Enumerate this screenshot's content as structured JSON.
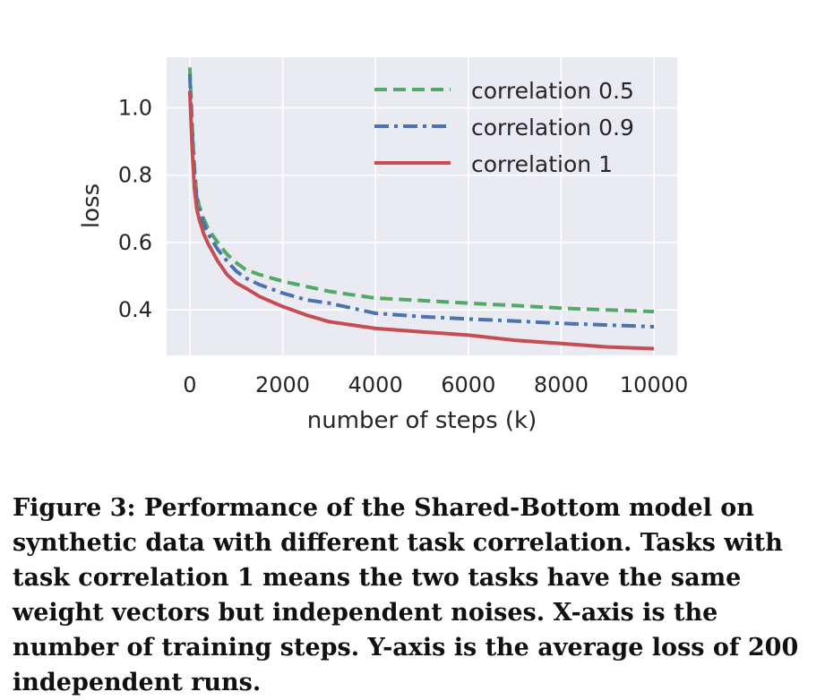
{
  "chart_data": {
    "type": "line",
    "xlabel": "number of steps (k)",
    "ylabel": "loss",
    "xlim": [
      -500,
      10500
    ],
    "ylim": [
      0.265,
      1.15
    ],
    "xticks": [
      0,
      2000,
      4000,
      6000,
      8000,
      10000
    ],
    "xtick_labels": [
      "0",
      "2000",
      "4000",
      "6000",
      "8000",
      "10000"
    ],
    "yticks": [
      0.4,
      0.6,
      0.8,
      1.0
    ],
    "ytick_labels": [
      "0.4",
      "0.6",
      "0.8",
      "1.0"
    ],
    "grid": true,
    "legend_position": "top-right",
    "series": [
      {
        "name": "correlation 0.5",
        "color": "#55a868",
        "style": "dashed",
        "x": [
          0,
          50,
          100,
          150,
          200,
          300,
          400,
          600,
          800,
          1000,
          1200,
          1500,
          2000,
          2500,
          3000,
          3500,
          4000,
          5000,
          6000,
          7000,
          8000,
          9000,
          10000
        ],
        "y": [
          1.12,
          0.95,
          0.82,
          0.74,
          0.71,
          0.67,
          0.64,
          0.6,
          0.565,
          0.54,
          0.52,
          0.505,
          0.485,
          0.47,
          0.455,
          0.445,
          0.435,
          0.428,
          0.42,
          0.413,
          0.405,
          0.4,
          0.395
        ]
      },
      {
        "name": "correlation 0.9",
        "color": "#4c72b0",
        "style": "dashdot",
        "x": [
          0,
          50,
          100,
          150,
          200,
          300,
          400,
          600,
          800,
          1000,
          1200,
          1500,
          2000,
          2500,
          3000,
          3500,
          4000,
          5000,
          6000,
          7000,
          8000,
          9000,
          10000
        ],
        "y": [
          1.1,
          0.93,
          0.8,
          0.73,
          0.7,
          0.655,
          0.625,
          0.58,
          0.545,
          0.515,
          0.495,
          0.475,
          0.45,
          0.43,
          0.42,
          0.405,
          0.39,
          0.38,
          0.373,
          0.367,
          0.36,
          0.355,
          0.35
        ]
      },
      {
        "name": "correlation 1",
        "color": "#c44e52",
        "style": "solid",
        "x": [
          0,
          50,
          100,
          150,
          200,
          300,
          400,
          600,
          800,
          1000,
          1200,
          1500,
          2000,
          2500,
          3000,
          3500,
          4000,
          5000,
          6000,
          7000,
          8000,
          9000,
          10000
        ],
        "y": [
          1.05,
          0.88,
          0.76,
          0.7,
          0.67,
          0.625,
          0.595,
          0.545,
          0.505,
          0.48,
          0.465,
          0.44,
          0.41,
          0.385,
          0.365,
          0.355,
          0.345,
          0.335,
          0.325,
          0.31,
          0.3,
          0.29,
          0.285
        ]
      }
    ]
  },
  "caption": "Figure 3: Performance of the Shared-Bottom model on synthetic data with different task correlation. Tasks with task correlation 1 means the two tasks have the same weight vectors but independent noises. X-axis is the number of training steps. Y-axis is the average loss of 200 independent runs."
}
